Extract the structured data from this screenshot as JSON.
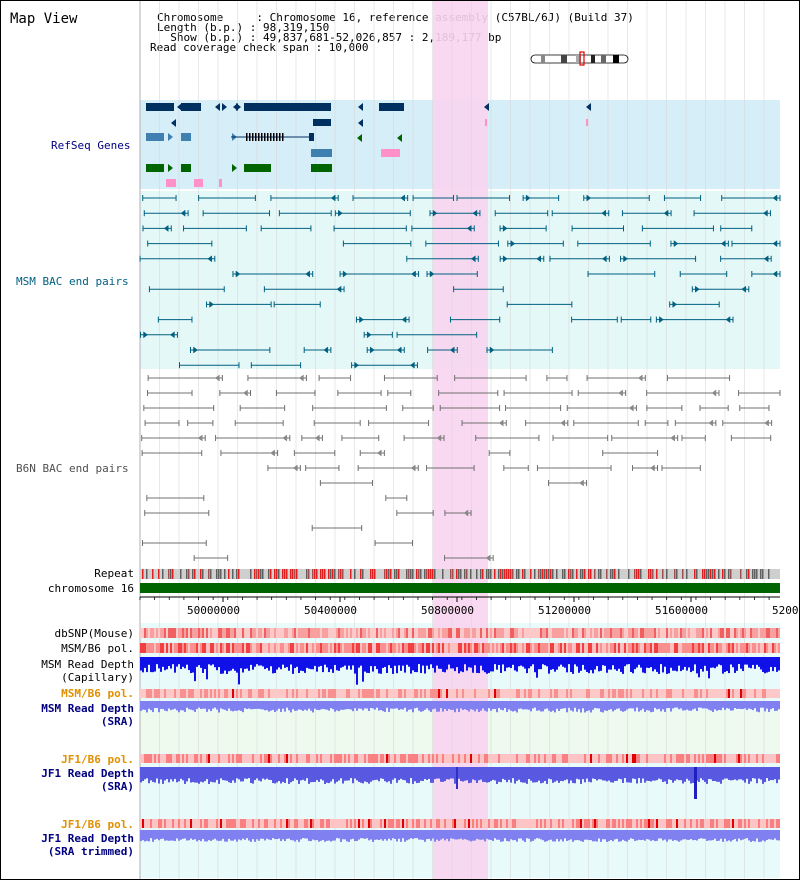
{
  "title": "Map View",
  "info": {
    "chromosome_line": "Chromosome     : Chromosome 16, reference assembly (C57BL/6J) (Build 37)",
    "length_line": "Length (b.p.) : 98,319,150",
    "show_line": "  Show (b.p.) : 49,837,681-52,026,857 : 2,189,177 bp",
    "coverage_line": "Read coverage check span : 10,000"
  },
  "tracks": {
    "refseq": "RefSeq Genes",
    "msm_bac": "MSM BAC end pairs",
    "b6n_bac": "B6N BAC end pairs",
    "repeat": "Repeat",
    "chromosome": "chromosome 16",
    "dbsnp": "dbSNP(Mouse)",
    "msm_b6_pol1": "MSM/B6 pol.",
    "msm_depth_cap_1": "MSM Read Depth",
    "msm_depth_cap_2": "(Capillary)",
    "msm_b6_pol2": "MSM/B6 pol.",
    "msm_depth_sra_1": "MSM Read Depth",
    "msm_depth_sra_2": "(SRA)",
    "jf1_b6_pol1": "JF1/B6 pol.",
    "jf1_depth_sra_1": "JF1 Read Depth",
    "jf1_depth_sra_2": "(SRA)",
    "jf1_b6_pol2": "JF1/B6 pol.",
    "jf1_depth_trim_1": "JF1 Read Depth",
    "jf1_depth_trim_2": "(SRA trimmed)"
  },
  "axis": {
    "ticks": [
      "50000000",
      "50400000",
      "50800000",
      "51200000",
      "51600000",
      "5200"
    ]
  },
  "colors": {
    "refseq_bg": "#d6eef8",
    "bac_bg": "#e4f8f8",
    "highlight": "#f8d4f0",
    "label_blue": "#000080",
    "label_teal": "#006080",
    "label_orange": "#e09000",
    "gene_dark": "#003060",
    "gene_green": "#006400",
    "gene_pink": "#ff90c8",
    "gene_light": "#4080b0",
    "msm_feature": "#006080",
    "b6n_feature": "#707070",
    "chrom_green": "#006400",
    "depth_blue": "#1010e8",
    "depth_light": "#8080f0",
    "depth_mid": "#5858e0"
  }
}
